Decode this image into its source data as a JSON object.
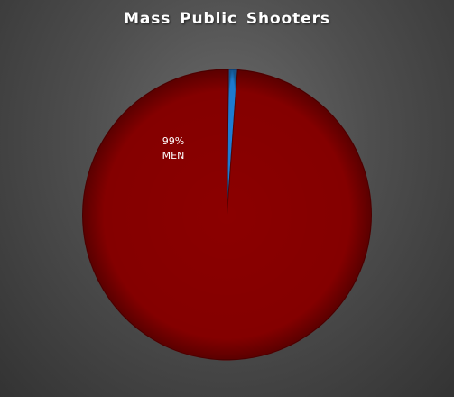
{
  "chart_data": {
    "type": "pie",
    "title": "Mass Public Shooters",
    "slices": [
      {
        "category": "MEN",
        "value": 99,
        "label_value": "99%",
        "color": "#8b0000"
      },
      {
        "category": "",
        "value": 1,
        "label_value": "",
        "color": "#1f7fd8"
      }
    ],
    "legend": "none"
  }
}
